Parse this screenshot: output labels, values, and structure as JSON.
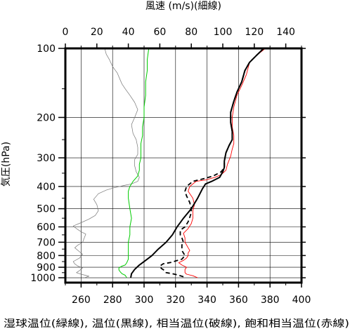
{
  "chart_data": {
    "type": "line",
    "title": "風速 (m/s)(細線)",
    "ylabel": "気圧(hPa)",
    "xlabel": "湿球温位(緑線), 温位(黒線), 相当温位(破線), 飽和相当温位(赤線)",
    "y_scale": "log",
    "ylim": [
      1050,
      100
    ],
    "yticks": [
      100,
      200,
      300,
      400,
      500,
      600,
      700,
      800,
      900,
      1000
    ],
    "xlim_bottom": [
      250,
      400
    ],
    "xticks_bottom": [
      260,
      280,
      300,
      320,
      340,
      360,
      380,
      400
    ],
    "xlim_top": [
      0,
      150
    ],
    "xticks_top": [
      0,
      20,
      40,
      60,
      80,
      100,
      120,
      140
    ],
    "series": [
      {
        "key": "theta",
        "axis": "bottom",
        "color": "#000000",
        "points": [
          [
            291.5,
            1000
          ],
          [
            292,
            960
          ],
          [
            294,
            920
          ],
          [
            297,
            880
          ],
          [
            301,
            840
          ],
          [
            305,
            800
          ],
          [
            309,
            750
          ],
          [
            314,
            700
          ],
          [
            318,
            650
          ],
          [
            321,
            600
          ],
          [
            325,
            550
          ],
          [
            330,
            500
          ],
          [
            334,
            450
          ],
          [
            337,
            410
          ],
          [
            339,
            390
          ],
          [
            343,
            380
          ],
          [
            348,
            365
          ],
          [
            350,
            345
          ],
          [
            351,
            330
          ],
          [
            351,
            310
          ],
          [
            352,
            285
          ],
          [
            354,
            265
          ],
          [
            356,
            250
          ],
          [
            356,
            230
          ],
          [
            355,
            210
          ],
          [
            355,
            190
          ],
          [
            357,
            170
          ],
          [
            359,
            155
          ],
          [
            362,
            140
          ],
          [
            364,
            125
          ],
          [
            367,
            115
          ],
          [
            371,
            108
          ],
          [
            376,
            100
          ]
        ]
      },
      {
        "key": "theta_e",
        "axis": "bottom",
        "color": "#000000",
        "dashed": true,
        "points": [
          [
            325,
            990
          ],
          [
            322,
            975
          ],
          [
            318,
            960
          ],
          [
            314,
            950
          ],
          [
            313,
            930
          ],
          [
            311,
            910
          ],
          [
            310,
            890
          ],
          [
            312,
            870
          ],
          [
            318,
            855
          ],
          [
            320,
            845
          ],
          [
            324,
            830
          ],
          [
            325,
            815
          ],
          [
            326,
            800
          ],
          [
            325,
            780
          ],
          [
            324,
            760
          ],
          [
            324,
            740
          ],
          [
            324,
            720
          ],
          [
            325,
            700
          ],
          [
            324,
            670
          ],
          [
            323,
            650
          ],
          [
            323,
            620
          ],
          [
            326,
            600
          ],
          [
            328,
            570
          ],
          [
            329,
            545
          ],
          [
            330,
            520
          ],
          [
            330,
            500
          ],
          [
            329,
            470
          ],
          [
            327,
            440
          ],
          [
            326,
            420
          ],
          [
            327,
            400
          ],
          [
            331,
            380
          ],
          [
            338,
            370
          ],
          [
            344,
            360
          ],
          [
            349,
            345
          ],
          [
            351,
            330
          ],
          [
            351,
            310
          ],
          [
            352,
            285
          ],
          [
            354,
            265
          ],
          [
            356,
            250
          ],
          [
            356,
            230
          ],
          [
            355,
            210
          ],
          [
            355,
            190
          ],
          [
            357,
            170
          ],
          [
            359,
            155
          ],
          [
            362,
            140
          ],
          [
            364,
            125
          ],
          [
            367,
            115
          ],
          [
            371,
            108
          ],
          [
            376,
            100
          ]
        ]
      },
      {
        "key": "theta_es",
        "axis": "bottom",
        "color": "#ff0000",
        "points": [
          [
            334,
            1000
          ],
          [
            331,
            980
          ],
          [
            327,
            965
          ],
          [
            326,
            950
          ],
          [
            326,
            920
          ],
          [
            327,
            900
          ],
          [
            324,
            880
          ],
          [
            322,
            860
          ],
          [
            325,
            840
          ],
          [
            327,
            820
          ],
          [
            328,
            800
          ],
          [
            328,
            780
          ],
          [
            329,
            760
          ],
          [
            328,
            740
          ],
          [
            327,
            720
          ],
          [
            326,
            700
          ],
          [
            326,
            670
          ],
          [
            325,
            640
          ],
          [
            328,
            610
          ],
          [
            330,
            580
          ],
          [
            331,
            550
          ],
          [
            331,
            510
          ],
          [
            332,
            480
          ],
          [
            331,
            450
          ],
          [
            328,
            420
          ],
          [
            329,
            400
          ],
          [
            333,
            380
          ],
          [
            339,
            375
          ],
          [
            345,
            365
          ],
          [
            349,
            355
          ],
          [
            352,
            340
          ],
          [
            353,
            320
          ],
          [
            355,
            295
          ],
          [
            356,
            275
          ],
          [
            357,
            260
          ],
          [
            357,
            240
          ],
          [
            356,
            220
          ],
          [
            356,
            200
          ],
          [
            357,
            180
          ],
          [
            359,
            160
          ],
          [
            362,
            145
          ],
          [
            365,
            130
          ],
          [
            367,
            115
          ],
          [
            371,
            108
          ],
          [
            377,
            100
          ]
        ]
      },
      {
        "key": "theta_w",
        "axis": "bottom",
        "color": "#00cc00",
        "points": [
          [
            289,
            1000
          ],
          [
            288,
            975
          ],
          [
            286,
            960
          ],
          [
            285,
            945
          ],
          [
            284,
            925
          ],
          [
            284,
            905
          ],
          [
            286,
            890
          ],
          [
            288,
            880
          ],
          [
            289,
            860
          ],
          [
            290,
            830
          ],
          [
            290,
            790
          ],
          [
            290,
            750
          ],
          [
            290,
            700
          ],
          [
            291,
            650
          ],
          [
            291,
            600
          ],
          [
            292,
            550
          ],
          [
            291,
            500
          ],
          [
            290,
            450
          ],
          [
            290,
            420
          ],
          [
            291,
            400
          ],
          [
            293,
            380
          ],
          [
            296,
            360
          ],
          [
            297,
            340
          ],
          [
            297,
            320
          ],
          [
            298,
            300
          ],
          [
            298,
            280
          ],
          [
            298,
            260
          ],
          [
            299,
            240
          ],
          [
            299,
            220
          ],
          [
            300,
            200
          ],
          [
            300,
            180
          ],
          [
            301,
            160
          ],
          [
            301,
            140
          ],
          [
            302,
            125
          ],
          [
            302,
            112
          ],
          [
            303,
            100
          ]
        ]
      },
      {
        "key": "wind_speed",
        "axis": "top",
        "color": "#777777",
        "points": [
          [
            12,
            1000
          ],
          [
            15,
            985
          ],
          [
            10,
            965
          ],
          [
            7,
            950
          ],
          [
            9,
            930
          ],
          [
            11,
            905
          ],
          [
            8,
            890
          ],
          [
            6,
            870
          ],
          [
            5,
            850
          ],
          [
            9,
            820
          ],
          [
            11,
            790
          ],
          [
            8,
            760
          ],
          [
            6,
            740
          ],
          [
            8,
            720
          ],
          [
            11,
            700
          ],
          [
            12,
            670
          ],
          [
            13,
            645
          ],
          [
            10,
            630
          ],
          [
            7,
            610
          ],
          [
            5,
            595
          ],
          [
            10,
            575
          ],
          [
            15,
            555
          ],
          [
            19,
            535
          ],
          [
            21,
            510
          ],
          [
            20,
            480
          ],
          [
            18,
            455
          ],
          [
            21,
            430
          ],
          [
            26,
            415
          ],
          [
            31,
            405
          ],
          [
            38,
            395
          ],
          [
            42,
            390
          ],
          [
            46,
            380
          ],
          [
            47,
            365
          ],
          [
            45,
            345
          ],
          [
            44,
            325
          ],
          [
            44,
            305
          ],
          [
            46,
            290
          ],
          [
            46,
            270
          ],
          [
            45,
            250
          ],
          [
            43,
            235
          ],
          [
            42,
            215
          ],
          [
            44,
            200
          ],
          [
            46,
            185
          ],
          [
            44,
            172
          ],
          [
            41,
            160
          ],
          [
            38,
            150
          ],
          [
            36,
            143
          ],
          [
            35,
            138
          ],
          [
            33,
            128
          ],
          [
            30,
            120
          ],
          [
            28,
            112
          ],
          [
            26,
            106
          ],
          [
            25,
            100
          ]
        ]
      }
    ]
  }
}
